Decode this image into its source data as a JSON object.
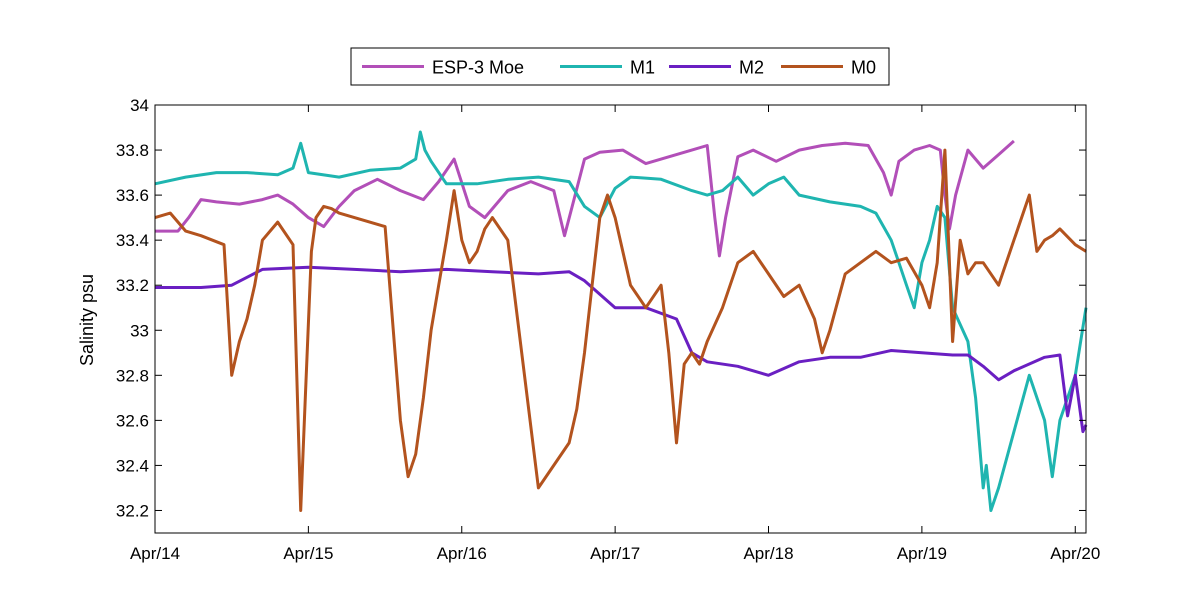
{
  "chart_data": {
    "type": "line",
    "title": "",
    "xlabel": "",
    "ylabel": "Salinity psu",
    "x_ticks": [
      "Apr/14",
      "Apr/15",
      "Apr/16",
      "Apr/17",
      "Apr/18",
      "Apr/19",
      "Apr/20"
    ],
    "xlim": [
      0,
      6.07
    ],
    "x_units": "days since Apr/14",
    "y_ticks": [
      "32.2",
      "32.4",
      "32.6",
      "32.8",
      "33",
      "33.2",
      "33.4",
      "33.6",
      "33.8",
      "34"
    ],
    "ylim": [
      32.1,
      34.0
    ],
    "grid": false,
    "legend_position": "top-center",
    "series": [
      {
        "name": "ESP-3 Moe",
        "color": "#b24fb8",
        "x": [
          0,
          0.15,
          0.22,
          0.3,
          0.4,
          0.55,
          0.7,
          0.8,
          0.9,
          1.0,
          1.1,
          1.2,
          1.3,
          1.45,
          1.6,
          1.75,
          1.85,
          1.95,
          2.05,
          2.15,
          2.3,
          2.45,
          2.6,
          2.67,
          2.72,
          2.8,
          2.9,
          3.05,
          3.2,
          3.35,
          3.5,
          3.6,
          3.65,
          3.68,
          3.72,
          3.8,
          3.9,
          4.05,
          4.2,
          4.35,
          4.5,
          4.65,
          4.75,
          4.8,
          4.85,
          4.95,
          5.05,
          5.12,
          5.15,
          5.18,
          5.22,
          5.3,
          5.4,
          5.5,
          5.6
        ],
        "y": [
          33.44,
          33.44,
          33.5,
          33.58,
          33.57,
          33.56,
          33.58,
          33.6,
          33.56,
          33.5,
          33.46,
          33.55,
          33.62,
          33.67,
          33.62,
          33.58,
          33.66,
          33.76,
          33.55,
          33.5,
          33.62,
          33.66,
          33.62,
          33.42,
          33.55,
          33.76,
          33.79,
          33.8,
          33.74,
          33.77,
          33.8,
          33.82,
          33.5,
          33.33,
          33.5,
          33.77,
          33.8,
          33.75,
          33.8,
          33.82,
          33.83,
          33.82,
          33.7,
          33.6,
          33.75,
          33.8,
          33.82,
          33.8,
          33.6,
          33.45,
          33.6,
          33.8,
          33.72,
          33.78,
          33.84
        ]
      },
      {
        "name": "M1",
        "color": "#1fb5b0",
        "x": [
          0,
          0.2,
          0.4,
          0.6,
          0.8,
          0.9,
          0.95,
          1.0,
          1.2,
          1.4,
          1.6,
          1.7,
          1.73,
          1.76,
          1.8,
          1.9,
          2.1,
          2.3,
          2.5,
          2.7,
          2.8,
          2.9,
          3.0,
          3.1,
          3.3,
          3.5,
          3.6,
          3.7,
          3.8,
          3.9,
          4.0,
          4.1,
          4.2,
          4.4,
          4.6,
          4.7,
          4.8,
          4.85,
          4.9,
          4.95,
          5.0,
          5.05,
          5.1,
          5.15,
          5.2,
          5.3,
          5.35,
          5.4,
          5.42,
          5.45,
          5.5,
          5.7,
          5.8,
          5.85,
          5.9,
          6.0,
          6.07
        ],
        "y": [
          33.65,
          33.68,
          33.7,
          33.7,
          33.69,
          33.72,
          33.83,
          33.7,
          33.68,
          33.71,
          33.72,
          33.76,
          33.88,
          33.8,
          33.75,
          33.65,
          33.65,
          33.67,
          33.68,
          33.66,
          33.55,
          33.5,
          33.63,
          33.68,
          33.67,
          33.62,
          33.6,
          33.62,
          33.68,
          33.6,
          33.65,
          33.68,
          33.6,
          33.57,
          33.55,
          33.52,
          33.4,
          33.3,
          33.2,
          33.1,
          33.3,
          33.4,
          33.55,
          33.5,
          33.1,
          32.95,
          32.7,
          32.3,
          32.4,
          32.2,
          32.3,
          32.8,
          32.6,
          32.35,
          32.6,
          32.8,
          33.1
        ]
      },
      {
        "name": "M2",
        "color": "#6a1fc2",
        "x": [
          0,
          0.3,
          0.5,
          0.7,
          1.0,
          1.3,
          1.6,
          1.9,
          2.2,
          2.5,
          2.7,
          2.8,
          3.0,
          3.2,
          3.4,
          3.5,
          3.6,
          3.8,
          4.0,
          4.2,
          4.4,
          4.6,
          4.8,
          5.0,
          5.2,
          5.3,
          5.4,
          5.5,
          5.6,
          5.8,
          5.9,
          5.95,
          6.0,
          6.05,
          6.07
        ],
        "y": [
          33.19,
          33.19,
          33.2,
          33.27,
          33.28,
          33.27,
          33.26,
          33.27,
          33.26,
          33.25,
          33.26,
          33.22,
          33.1,
          33.1,
          33.05,
          32.9,
          32.86,
          32.84,
          32.8,
          32.86,
          32.88,
          32.88,
          32.91,
          32.9,
          32.89,
          32.89,
          32.84,
          32.78,
          32.82,
          32.88,
          32.89,
          32.62,
          32.8,
          32.55,
          32.58
        ]
      },
      {
        "name": "M0",
        "color": "#b3531e",
        "x": [
          0,
          0.1,
          0.2,
          0.3,
          0.45,
          0.5,
          0.55,
          0.6,
          0.65,
          0.7,
          0.8,
          0.9,
          0.95,
          0.98,
          1.02,
          1.05,
          1.1,
          1.15,
          1.2,
          1.3,
          1.5,
          1.6,
          1.65,
          1.7,
          1.75,
          1.8,
          1.85,
          1.9,
          1.95,
          2.0,
          2.05,
          2.1,
          2.15,
          2.2,
          2.3,
          2.5,
          2.7,
          2.75,
          2.8,
          2.85,
          2.9,
          2.95,
          3.0,
          3.1,
          3.2,
          3.3,
          3.35,
          3.4,
          3.45,
          3.5,
          3.55,
          3.6,
          3.7,
          3.8,
          3.9,
          4.0,
          4.1,
          4.2,
          4.3,
          4.35,
          4.4,
          4.5,
          4.6,
          4.7,
          4.8,
          4.9,
          5.0,
          5.05,
          5.1,
          5.15,
          5.2,
          5.25,
          5.3,
          5.35,
          5.4,
          5.5,
          5.6,
          5.7,
          5.75,
          5.8,
          5.85,
          5.9,
          6.0,
          6.07
        ],
        "y": [
          33.5,
          33.52,
          33.44,
          33.42,
          33.38,
          32.8,
          32.95,
          33.05,
          33.2,
          33.4,
          33.48,
          33.38,
          32.2,
          32.7,
          33.35,
          33.5,
          33.55,
          33.54,
          33.52,
          33.5,
          33.46,
          32.6,
          32.35,
          32.45,
          32.7,
          33.0,
          33.2,
          33.4,
          33.62,
          33.4,
          33.3,
          33.35,
          33.45,
          33.5,
          33.4,
          32.3,
          32.5,
          32.65,
          32.9,
          33.2,
          33.5,
          33.6,
          33.5,
          33.2,
          33.1,
          33.2,
          32.9,
          32.5,
          32.85,
          32.9,
          32.85,
          32.95,
          33.1,
          33.3,
          33.35,
          33.25,
          33.15,
          33.2,
          33.05,
          32.9,
          33.0,
          33.25,
          33.3,
          33.35,
          33.3,
          33.32,
          33.2,
          33.1,
          33.3,
          33.8,
          32.95,
          33.4,
          33.25,
          33.3,
          33.3,
          33.2,
          33.4,
          33.6,
          33.35,
          33.4,
          33.42,
          33.45,
          33.38,
          33.35
        ]
      }
    ]
  }
}
